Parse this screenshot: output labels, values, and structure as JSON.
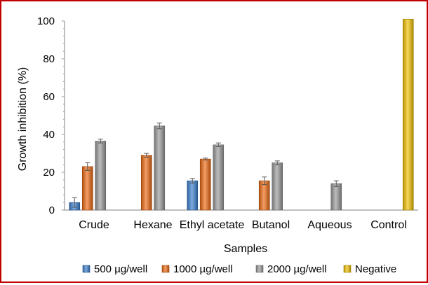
{
  "chart_data": {
    "type": "bar",
    "title": "",
    "xlabel": "Samples",
    "ylabel": "Growth inhibition (%)",
    "ylim": [
      0,
      100
    ],
    "yticks": [
      0,
      20,
      40,
      60,
      80,
      100
    ],
    "grid": false,
    "legend_position": "bottom",
    "categories": [
      "Crude",
      "Hexane",
      "Ethyl acetate",
      "Butanol",
      "Aqueous",
      "Control"
    ],
    "series": [
      {
        "name": "500 µg/well",
        "color": "#3a7fd0",
        "values": [
          4,
          null,
          15.5,
          null,
          null,
          null
        ],
        "errors": [
          2.5,
          null,
          1.2,
          null,
          null,
          null
        ]
      },
      {
        "name": "1000 µg/well",
        "color": "#ee6a12",
        "values": [
          23,
          29,
          27,
          15.5,
          null,
          null
        ],
        "errors": [
          2.0,
          1.0,
          0.5,
          2.0,
          null,
          null
        ]
      },
      {
        "name": "2000 µg/well",
        "color": "#9a9a9a",
        "values": [
          36.5,
          44.5,
          34.5,
          25,
          14,
          null
        ],
        "errors": [
          1.0,
          1.5,
          1.0,
          1.0,
          1.5,
          null
        ]
      },
      {
        "name": "Negative",
        "color": "#f2c200",
        "values": [
          null,
          null,
          null,
          null,
          null,
          101
        ],
        "errors": [
          null,
          null,
          null,
          null,
          null,
          null
        ]
      }
    ]
  }
}
